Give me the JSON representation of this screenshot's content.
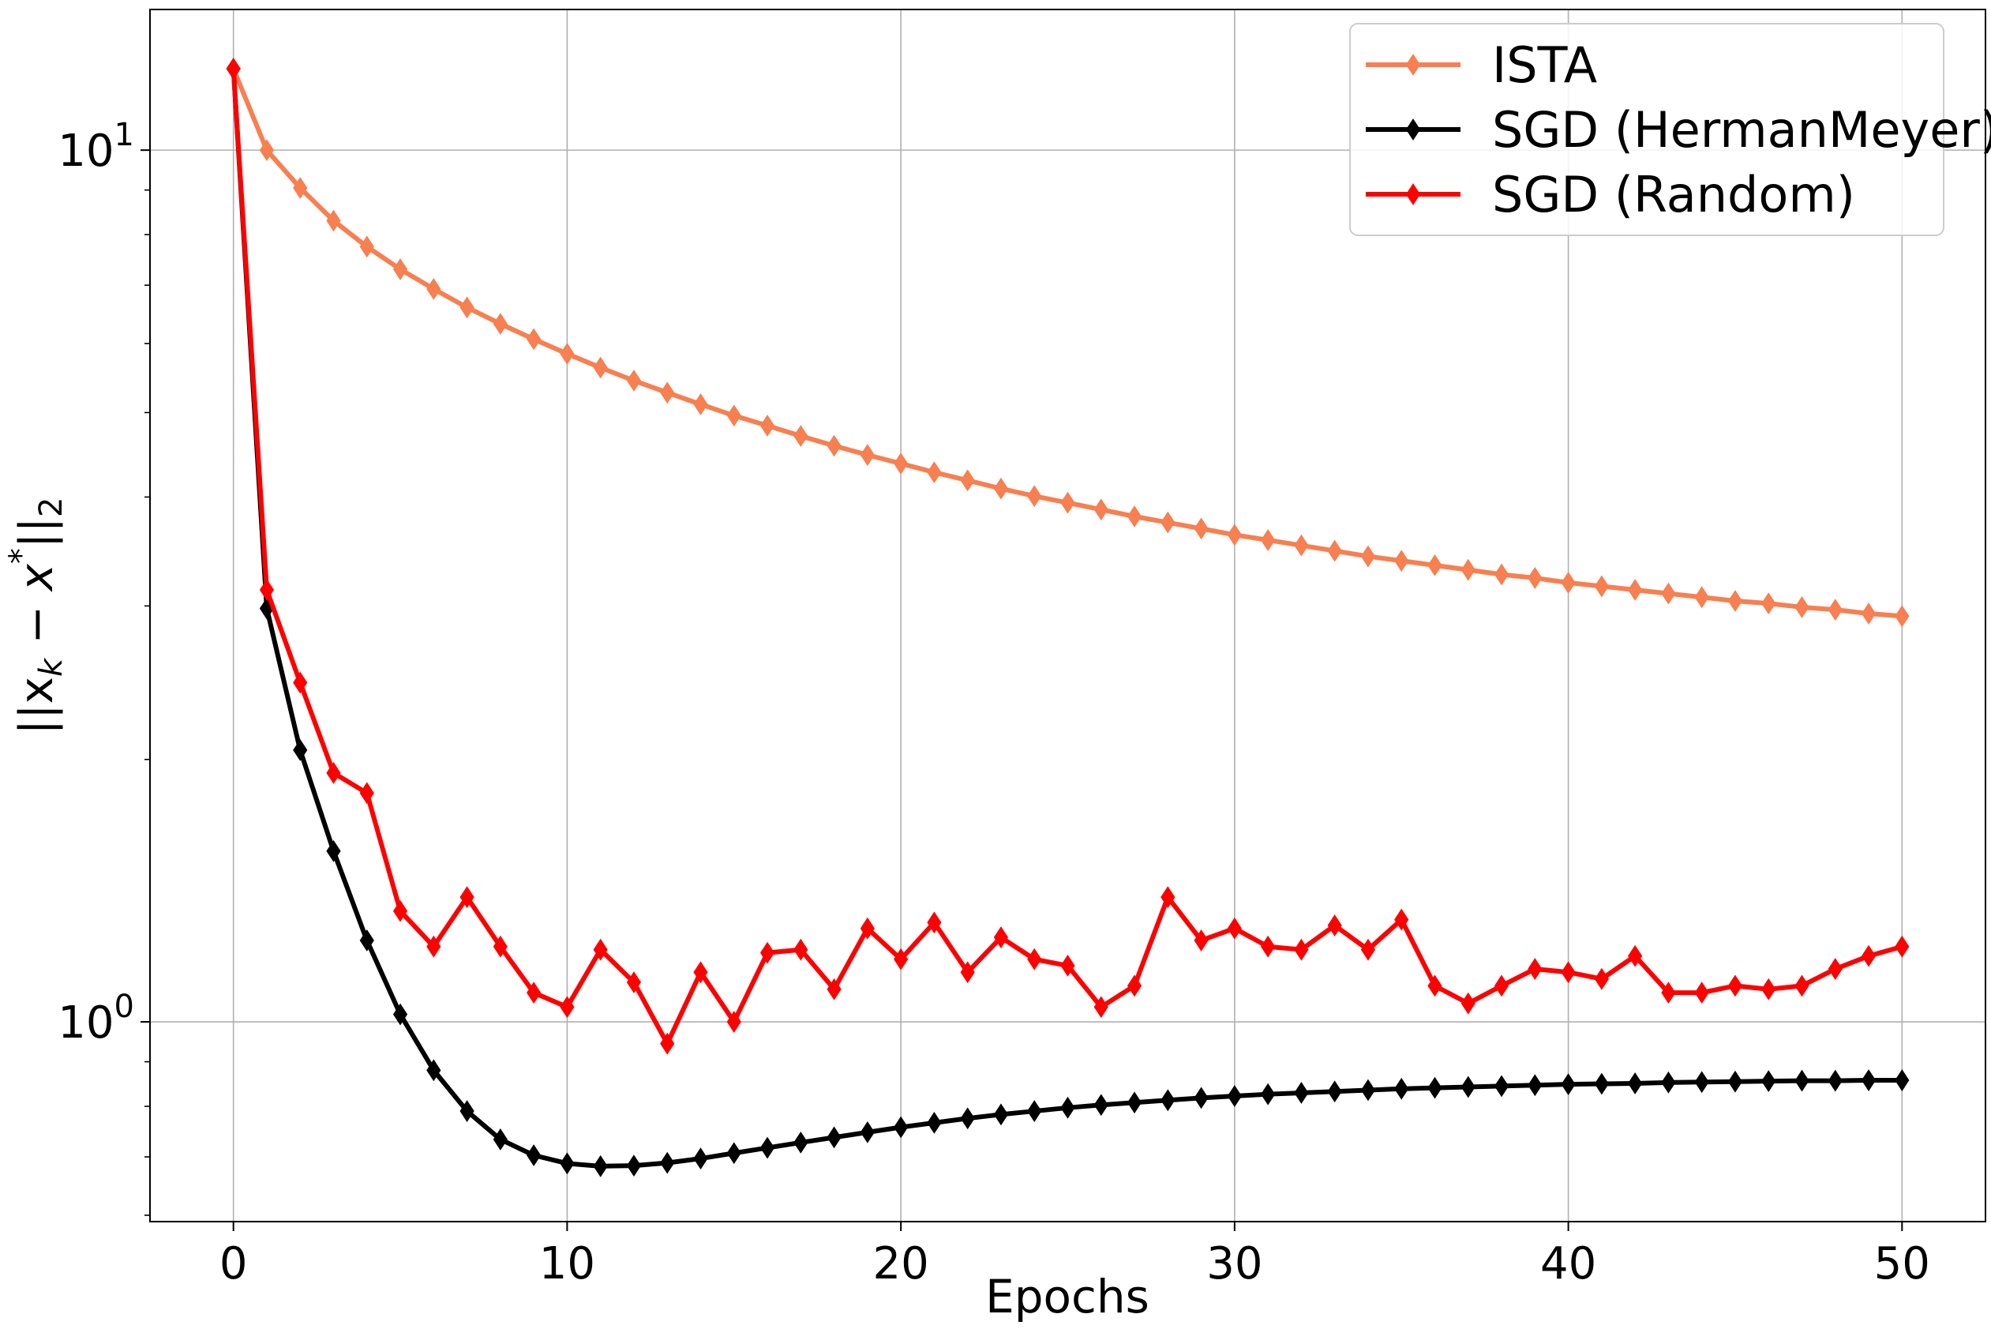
{
  "chart_data": {
    "type": "line",
    "xlabel": "Epochs",
    "ylabel_parts": {
      "base": "||x",
      "sub": "k",
      "mid": " − x",
      "sup": "*",
      "end": "||",
      "sub2": "2"
    },
    "yscale": "log",
    "xlim": [
      -2.5,
      52.5
    ],
    "ylim": [
      0.59,
      14.5
    ],
    "x_ticks": [
      0,
      10,
      20,
      30,
      40,
      50
    ],
    "x_tick_labels": [
      "0",
      "10",
      "20",
      "30",
      "40",
      "50"
    ],
    "y_ticks_major": [
      1,
      10
    ],
    "y_tick_labels": [
      {
        "base": "10",
        "exp": "0"
      },
      {
        "base": "10",
        "exp": "1"
      }
    ],
    "y_ticks_minor": [
      0.6,
      0.7,
      0.8,
      0.9,
      2,
      3,
      4,
      5,
      6,
      7,
      8,
      9
    ],
    "grid": true,
    "legend_position": "top-right",
    "x": [
      0,
      1,
      2,
      3,
      4,
      5,
      6,
      7,
      8,
      9,
      10,
      11,
      12,
      13,
      14,
      15,
      16,
      17,
      18,
      19,
      20,
      21,
      22,
      23,
      24,
      25,
      26,
      27,
      28,
      29,
      30,
      31,
      32,
      33,
      34,
      35,
      36,
      37,
      38,
      39,
      40,
      41,
      42,
      43,
      44,
      45,
      46,
      47,
      48,
      49,
      50
    ],
    "series": [
      {
        "name": "ISTA",
        "color": "#f77f50",
        "values": [
          12.4,
          10.0,
          9.05,
          8.3,
          7.75,
          7.3,
          6.93,
          6.6,
          6.32,
          6.07,
          5.84,
          5.63,
          5.44,
          5.27,
          5.11,
          4.96,
          4.83,
          4.7,
          4.58,
          4.47,
          4.37,
          4.27,
          4.18,
          4.09,
          4.01,
          3.94,
          3.87,
          3.8,
          3.74,
          3.68,
          3.62,
          3.57,
          3.52,
          3.47,
          3.42,
          3.38,
          3.34,
          3.3,
          3.26,
          3.23,
          3.19,
          3.16,
          3.13,
          3.1,
          3.07,
          3.04,
          3.02,
          2.99,
          2.97,
          2.94,
          2.92
        ]
      },
      {
        "name": "SGD (HermanMeyer)",
        "color": "#000000",
        "values": [
          12.4,
          2.98,
          2.05,
          1.57,
          1.24,
          1.02,
          0.88,
          0.79,
          0.733,
          0.703,
          0.688,
          0.683,
          0.684,
          0.689,
          0.697,
          0.707,
          0.717,
          0.727,
          0.737,
          0.747,
          0.757,
          0.766,
          0.775,
          0.783,
          0.79,
          0.797,
          0.803,
          0.808,
          0.813,
          0.818,
          0.822,
          0.826,
          0.829,
          0.832,
          0.835,
          0.838,
          0.84,
          0.842,
          0.844,
          0.846,
          0.848,
          0.849,
          0.85,
          0.852,
          0.853,
          0.854,
          0.855,
          0.856,
          0.856,
          0.857,
          0.857
        ]
      },
      {
        "name": "SGD (Random)",
        "color": "#ff0000",
        "values": [
          12.4,
          3.13,
          2.45,
          1.93,
          1.83,
          1.34,
          1.22,
          1.39,
          1.22,
          1.08,
          1.04,
          1.21,
          1.11,
          0.944,
          1.14,
          1.0,
          1.2,
          1.21,
          1.09,
          1.28,
          1.18,
          1.3,
          1.14,
          1.25,
          1.18,
          1.16,
          1.04,
          1.1,
          1.39,
          1.24,
          1.28,
          1.22,
          1.21,
          1.29,
          1.21,
          1.31,
          1.1,
          1.05,
          1.1,
          1.15,
          1.14,
          1.12,
          1.19,
          1.08,
          1.08,
          1.1,
          1.09,
          1.1,
          1.15,
          1.19,
          1.22
        ]
      }
    ]
  }
}
